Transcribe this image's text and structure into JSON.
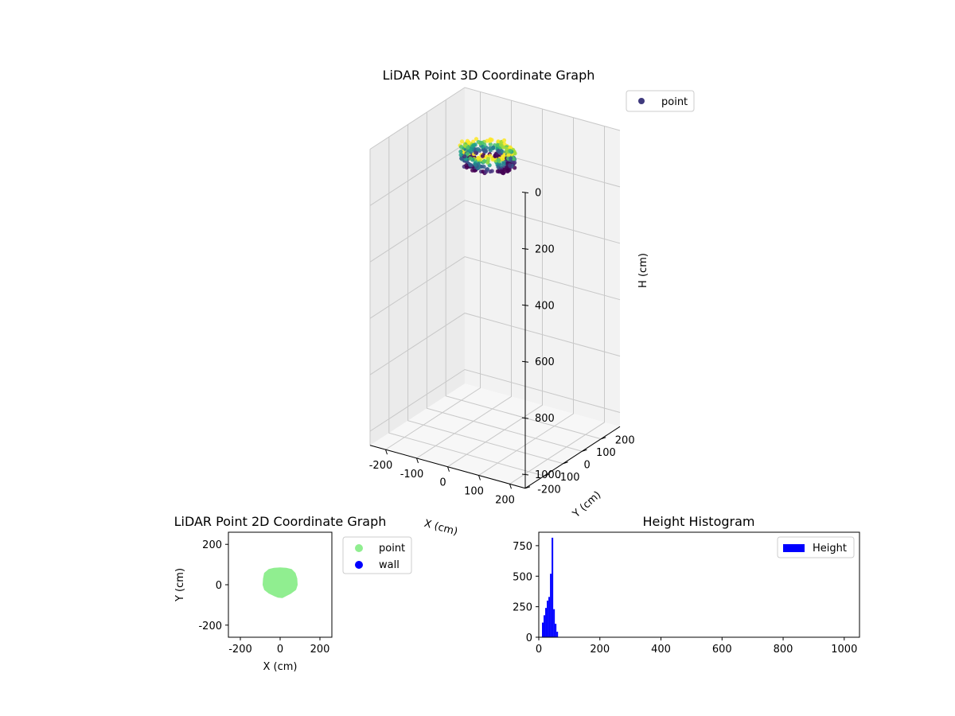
{
  "chart_data": [
    {
      "type": "scatter",
      "projection": "3d",
      "title": "LiDAR Point 3D Coordinate Graph",
      "xlabel": "X (cm)",
      "ylabel": "Y (cm)",
      "zlabel": "H (cm)",
      "xlim": [
        -250,
        250
      ],
      "ylim": [
        -200,
        300
      ],
      "zlim": [
        1050,
        0
      ],
      "z_inverted": true,
      "xticks": [
        "-200",
        "-100",
        "0",
        "100",
        "200"
      ],
      "yticks": [
        "-200",
        "-100",
        "0",
        "100",
        "200"
      ],
      "zticks": [
        "0",
        "200",
        "400",
        "600",
        "800",
        "1000"
      ],
      "grid": true,
      "legend": {
        "position": "top-right",
        "entries": [
          "point"
        ]
      },
      "colormap": "viridis",
      "series": [
        {
          "name": "point",
          "color": "#3f3a7d",
          "shape": "roughly elliptical ring of points",
          "x_range": [
            -80,
            80
          ],
          "y_range": [
            -60,
            80
          ],
          "h_range": [
            10,
            70
          ]
        }
      ]
    },
    {
      "type": "scatter",
      "title": "LiDAR Point 2D Coordinate Graph",
      "xlabel": "X (cm)",
      "ylabel": "Y (cm)",
      "xlim": [
        -260,
        260
      ],
      "ylim": [
        -260,
        260
      ],
      "xticks": [
        "-200",
        "0",
        "200"
      ],
      "yticks": [
        "-200",
        "0",
        "200"
      ],
      "grid": false,
      "legend": {
        "position": "outside-right",
        "entries": [
          "point",
          "wall"
        ]
      },
      "series": [
        {
          "name": "point",
          "color": "#90ee90",
          "outline": [
            [
              -80,
              30
            ],
            [
              -75,
              55
            ],
            [
              -55,
              72
            ],
            [
              -30,
              78
            ],
            [
              0,
              80
            ],
            [
              30,
              78
            ],
            [
              55,
              72
            ],
            [
              72,
              55
            ],
            [
              80,
              30
            ],
            [
              82,
              0
            ],
            [
              75,
              -22
            ],
            [
              50,
              -40
            ],
            [
              30,
              -50
            ],
            [
              10,
              -60
            ],
            [
              -10,
              -58
            ],
            [
              -30,
              -50
            ],
            [
              -55,
              -38
            ],
            [
              -75,
              -22
            ],
            [
              -82,
              0
            ]
          ]
        },
        {
          "name": "wall",
          "color": "#0000ff",
          "points": []
        }
      ]
    },
    {
      "type": "bar",
      "subtype": "histogram",
      "title": "Height Histogram",
      "xlabel": "",
      "ylabel": "",
      "xlim": [
        0,
        1050
      ],
      "ylim": [
        0,
        860
      ],
      "xticks": [
        "0",
        "200",
        "400",
        "600",
        "800",
        "1000"
      ],
      "yticks": [
        "0",
        "250",
        "500",
        "750"
      ],
      "legend": {
        "position": "top-right",
        "entries": [
          "Height"
        ]
      },
      "series": [
        {
          "name": "Height",
          "color": "#0000ff",
          "bin_width": 5.25,
          "bin_starts": [
            10.5,
            15.75,
            21,
            26.25,
            31.5,
            36.75,
            42,
            47.25,
            52.5,
            57.75
          ],
          "values": [
            120,
            180,
            240,
            300,
            330,
            520,
            815,
            230,
            110,
            45
          ]
        }
      ]
    }
  ]
}
